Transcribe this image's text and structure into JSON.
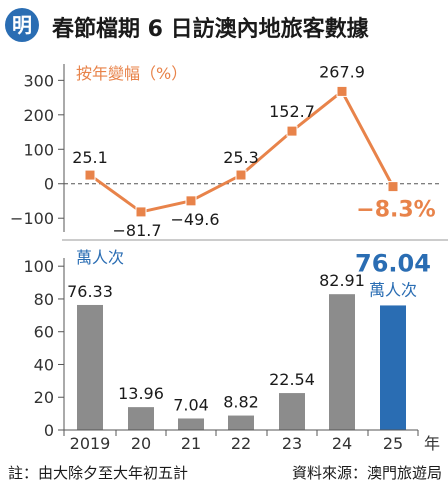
{
  "header": {
    "logo_text": "明",
    "title": "春節檔期 6 日訪澳內地旅客數據"
  },
  "colors": {
    "orange": "#e8834a",
    "gray_bar": "#8c8c8c",
    "blue_bar": "#2a6db3",
    "logo_blue": "#2a6db3",
    "axis": "#555555",
    "grid": "#dddddd"
  },
  "chart_data": [
    {
      "type": "line",
      "ylabel": "按年變幅（%）",
      "categories": [
        "2019",
        "20",
        "21",
        "22",
        "23",
        "24",
        "25"
      ],
      "values": [
        25.1,
        -81.7,
        -49.6,
        25.3,
        152.7,
        267.9,
        -8.3
      ],
      "value_labels": [
        "25.1",
        "−81.7",
        "−49.6",
        "25.3",
        "152.7",
        "267.9",
        "−8.3%"
      ],
      "y_ticks": [
        "300",
        "200",
        "100",
        "0",
        "−100"
      ],
      "y_tick_values": [
        300,
        200,
        100,
        0,
        -100
      ],
      "ylim": [
        -140,
        330
      ],
      "grid": false
    },
    {
      "type": "bar",
      "ylabel": "萬人次",
      "categories": [
        "2019",
        "20",
        "21",
        "22",
        "23",
        "24",
        "25"
      ],
      "x_unit": "年",
      "values": [
        76.33,
        13.96,
        7.04,
        8.82,
        22.54,
        82.91,
        76.04
      ],
      "value_labels": [
        "76.33",
        "13.96",
        "7.04",
        "8.82",
        "22.54",
        "82.91",
        "76.04"
      ],
      "highlight_unit": "萬人次",
      "y_ticks": [
        "100",
        "80",
        "60",
        "40",
        "20",
        "0"
      ],
      "y_tick_values": [
        100,
        80,
        60,
        40,
        20,
        0
      ],
      "ylim": [
        0,
        105
      ],
      "grid": false
    }
  ],
  "footer": {
    "note": "註：由大除夕至大年初五計",
    "source": "資料來源：澳門旅遊局"
  }
}
